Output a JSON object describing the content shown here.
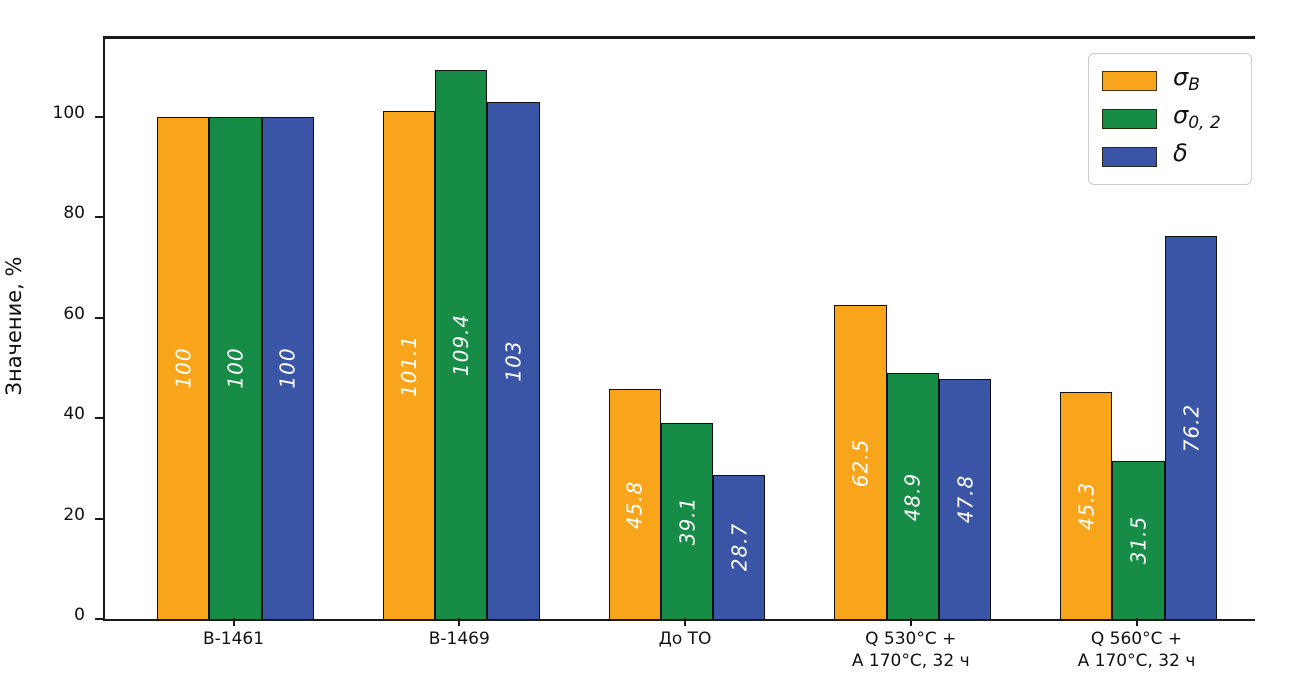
{
  "chart_data": {
    "type": "bar",
    "title": "",
    "xlabel": "",
    "ylabel": "Значение, %",
    "ylim": [
      0,
      115.5
    ],
    "yticks": [
      0,
      20,
      40,
      60,
      80,
      100
    ],
    "grid": false,
    "legend_position": "upper right",
    "categories": [
      "В-1461",
      "В-1469",
      "До ТО",
      "Q 530°C +\nA 170°C, 32 ч",
      "Q 560°C +\nA 170°C, 32 ч"
    ],
    "series": [
      {
        "name": "sigma_B",
        "symbol": "σ",
        "subscript": "B",
        "color": "#F9A51B",
        "values": [
          100,
          101.1,
          45.8,
          62.5,
          45.3
        ],
        "labels": [
          "100",
          "101.1",
          "45.8",
          "62.5",
          "45.3"
        ]
      },
      {
        "name": "sigma_0.2",
        "symbol": "σ",
        "subscript": "0, 2",
        "color": "#178C47",
        "values": [
          100,
          109.4,
          39.1,
          48.9,
          31.5
        ],
        "labels": [
          "100",
          "109.4",
          "39.1",
          "48.9",
          "31.5"
        ]
      },
      {
        "name": "delta",
        "symbol": "δ",
        "subscript": "",
        "color": "#3A55A6",
        "values": [
          100,
          103,
          28.7,
          47.8,
          76.2
        ],
        "labels": [
          "100",
          "103",
          "28.7",
          "47.8",
          "76.2"
        ]
      }
    ]
  }
}
